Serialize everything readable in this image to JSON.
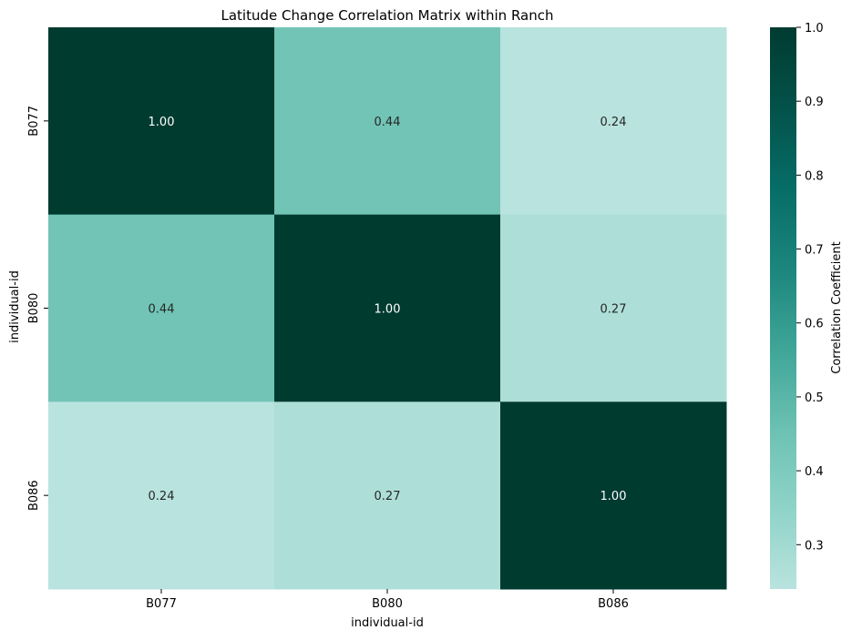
{
  "chart_data": {
    "type": "heatmap",
    "title": "Latitude Change Correlation Matrix within Ranch",
    "xlabel": "individual-id",
    "ylabel": "individual-id",
    "x_categories": [
      "B077",
      "B080",
      "B086"
    ],
    "y_categories": [
      "B077",
      "B080",
      "B086"
    ],
    "values": [
      [
        1.0,
        0.44,
        0.24
      ],
      [
        0.44,
        1.0,
        0.27
      ],
      [
        0.24,
        0.27,
        1.0
      ]
    ],
    "value_labels": [
      [
        "1.00",
        "0.44",
        "0.24"
      ],
      [
        "0.44",
        "1.00",
        "0.27"
      ],
      [
        "0.24",
        "0.27",
        "1.00"
      ]
    ],
    "colorbar": {
      "label": "Correlation Coefficient",
      "range": [
        0.24,
        1.0
      ],
      "ticks": [
        0.3,
        0.4,
        0.5,
        0.6,
        0.7,
        0.8,
        0.9,
        1.0
      ],
      "tick_labels": [
        "0.3",
        "0.4",
        "0.5",
        "0.6",
        "0.7",
        "0.8",
        "0.9",
        "1.0"
      ],
      "colormap": [
        "#b9e3de",
        "#8fd3c8",
        "#6bc1b3",
        "#3ea597",
        "#1c857c",
        "#066d66",
        "#03524a",
        "#003b30"
      ],
      "position": "right"
    },
    "grid": false,
    "text_light": "#ffffff",
    "text_dark": "#262626"
  }
}
